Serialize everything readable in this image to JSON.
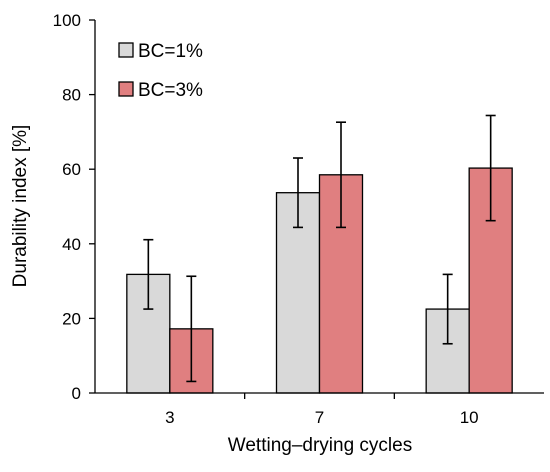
{
  "chart_data": {
    "type": "bar",
    "title": "",
    "xlabel": "Wetting–drying cycles",
    "ylabel": "Durability index [%]",
    "categories": [
      "3",
      "7",
      "10"
    ],
    "ylim": [
      0,
      100
    ],
    "yticks": [
      0,
      20,
      40,
      60,
      80,
      100
    ],
    "grid": false,
    "legend_position": "top-left",
    "series": [
      {
        "name": "BC=1%",
        "color": "#d9d9d9",
        "values": [
          31.8,
          53.7,
          22.5
        ],
        "error": [
          9.3,
          9.3,
          9.3
        ]
      },
      {
        "name": "BC=3%",
        "color": "#e07f80",
        "values": [
          17.2,
          58.5,
          60.3
        ],
        "error": [
          14.1,
          14.1,
          14.1
        ]
      }
    ]
  }
}
